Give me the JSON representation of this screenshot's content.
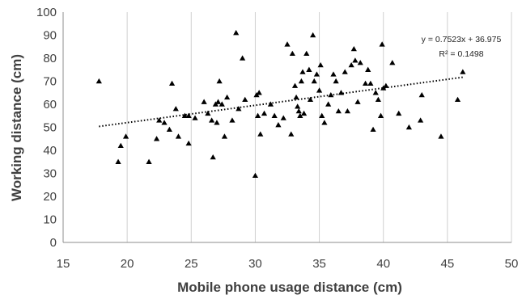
{
  "chart_data": {
    "type": "scatter",
    "title": "",
    "xlabel": "Mobile phone usage distance (cm)",
    "ylabel": "Working distance (cm)",
    "xlim": [
      15,
      50
    ],
    "ylim": [
      0,
      100
    ],
    "x_ticks": [
      15,
      20,
      25,
      30,
      35,
      40,
      45,
      50
    ],
    "y_ticks": [
      0,
      10,
      20,
      30,
      40,
      50,
      60,
      70,
      80,
      90,
      100
    ],
    "grid": "vertical",
    "marker": "triangle",
    "marker_color": "#000000",
    "trendline": {
      "style": "dotted",
      "slope": 0.7523,
      "intercept": 36.975,
      "x_range": [
        17.8,
        46.2
      ],
      "equation": "y = 0.7523x + 36.975",
      "r_squared": "R² = 0.1498"
    },
    "series": [
      {
        "points": [
          [
            17.8,
            70
          ],
          [
            19.3,
            35
          ],
          [
            19.5,
            42
          ],
          [
            19.9,
            46
          ],
          [
            21.7,
            35
          ],
          [
            22.3,
            45
          ],
          [
            22.5,
            53
          ],
          [
            22.9,
            52
          ],
          [
            23.3,
            49
          ],
          [
            23.5,
            69
          ],
          [
            23.8,
            58
          ],
          [
            24.0,
            46
          ],
          [
            24.5,
            55
          ],
          [
            24.8,
            55
          ],
          [
            24.8,
            43
          ],
          [
            25.3,
            54
          ],
          [
            26.0,
            61
          ],
          [
            26.3,
            56
          ],
          [
            26.6,
            53
          ],
          [
            26.7,
            37
          ],
          [
            26.9,
            60
          ],
          [
            27.0,
            52
          ],
          [
            27.1,
            61
          ],
          [
            27.2,
            70
          ],
          [
            27.4,
            60
          ],
          [
            27.6,
            46
          ],
          [
            27.8,
            63
          ],
          [
            28.2,
            53
          ],
          [
            28.5,
            91
          ],
          [
            28.7,
            58
          ],
          [
            29.0,
            80
          ],
          [
            29.2,
            62
          ],
          [
            30.0,
            29
          ],
          [
            30.1,
            64
          ],
          [
            30.2,
            55
          ],
          [
            30.3,
            65
          ],
          [
            30.4,
            47
          ],
          [
            30.7,
            56
          ],
          [
            31.2,
            60
          ],
          [
            31.5,
            55
          ],
          [
            31.8,
            51
          ],
          [
            32.2,
            54
          ],
          [
            32.5,
            86
          ],
          [
            32.8,
            47
          ],
          [
            32.9,
            82
          ],
          [
            33.1,
            68
          ],
          [
            33.2,
            63
          ],
          [
            33.3,
            59
          ],
          [
            33.4,
            57
          ],
          [
            33.5,
            55
          ],
          [
            33.6,
            70
          ],
          [
            33.7,
            74
          ],
          [
            33.8,
            56
          ],
          [
            34.0,
            82
          ],
          [
            34.2,
            75
          ],
          [
            34.3,
            62
          ],
          [
            34.5,
            90
          ],
          [
            34.6,
            70
          ],
          [
            34.8,
            73
          ],
          [
            35.0,
            66
          ],
          [
            35.1,
            77
          ],
          [
            35.2,
            55
          ],
          [
            35.4,
            52
          ],
          [
            35.7,
            60
          ],
          [
            35.9,
            64
          ],
          [
            36.1,
            73
          ],
          [
            36.3,
            70
          ],
          [
            36.5,
            57
          ],
          [
            36.7,
            65
          ],
          [
            37.0,
            74
          ],
          [
            37.2,
            57
          ],
          [
            37.5,
            77
          ],
          [
            37.7,
            84
          ],
          [
            37.8,
            79
          ],
          [
            38.0,
            61
          ],
          [
            38.2,
            78
          ],
          [
            38.6,
            69
          ],
          [
            38.8,
            75
          ],
          [
            39.0,
            69
          ],
          [
            39.2,
            49
          ],
          [
            39.4,
            65
          ],
          [
            39.6,
            62
          ],
          [
            39.8,
            55
          ],
          [
            39.9,
            86
          ],
          [
            40.0,
            67
          ],
          [
            40.2,
            68
          ],
          [
            40.7,
            78
          ],
          [
            41.2,
            56
          ],
          [
            42.0,
            50
          ],
          [
            42.9,
            53
          ],
          [
            43.0,
            64
          ],
          [
            44.5,
            46
          ],
          [
            45.8,
            62
          ],
          [
            46.2,
            74
          ]
        ]
      }
    ]
  }
}
